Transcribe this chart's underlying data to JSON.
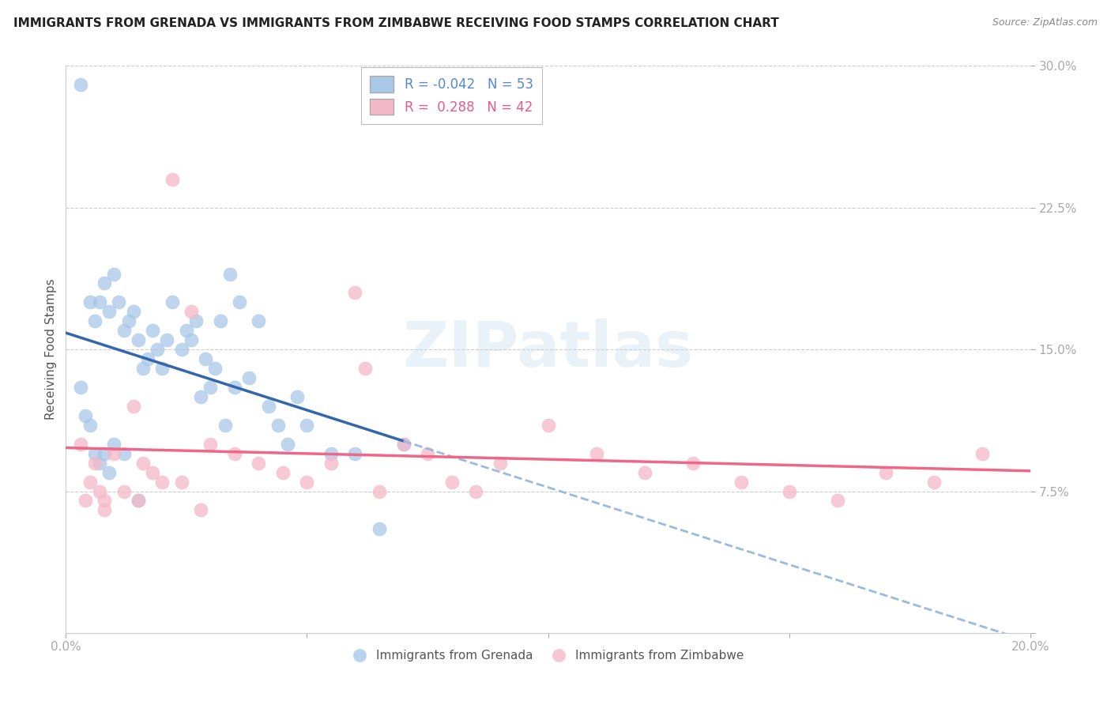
{
  "title": "IMMIGRANTS FROM GRENADA VS IMMIGRANTS FROM ZIMBABWE RECEIVING FOOD STAMPS CORRELATION CHART",
  "source": "Source: ZipAtlas.com",
  "ylabel": "Receiving Food Stamps",
  "xlim": [
    0.0,
    0.2
  ],
  "ylim": [
    0.0,
    0.3
  ],
  "legend_r_blue": "-0.042",
  "legend_n_blue": "53",
  "legend_r_pink": "0.288",
  "legend_n_pink": "42",
  "blue_color": "#a8c8e8",
  "pink_color": "#f4b8c8",
  "blue_line_color": "#3366aa",
  "pink_line_color": "#ee6688",
  "blue_dash_color": "#99bbdd",
  "watermark": "ZIPatlas",
  "background_color": "#ffffff",
  "grid_color": "#cccccc",
  "tick_color": "#5588cc",
  "title_fontsize": 11,
  "axis_label_fontsize": 11,
  "tick_fontsize": 11,
  "blue_scatter_x": [
    0.003,
    0.005,
    0.006,
    0.007,
    0.008,
    0.009,
    0.01,
    0.011,
    0.012,
    0.013,
    0.014,
    0.015,
    0.016,
    0.017,
    0.018,
    0.019,
    0.02,
    0.021,
    0.022,
    0.024,
    0.025,
    0.026,
    0.027,
    0.028,
    0.029,
    0.03,
    0.031,
    0.032,
    0.033,
    0.034,
    0.035,
    0.036,
    0.038,
    0.04,
    0.042,
    0.044,
    0.046,
    0.048,
    0.05,
    0.055,
    0.06,
    0.065,
    0.003,
    0.004,
    0.005,
    0.006,
    0.007,
    0.008,
    0.009,
    0.01,
    0.012,
    0.015,
    0.07
  ],
  "blue_scatter_y": [
    0.29,
    0.175,
    0.165,
    0.175,
    0.185,
    0.17,
    0.19,
    0.175,
    0.16,
    0.165,
    0.17,
    0.155,
    0.14,
    0.145,
    0.16,
    0.15,
    0.14,
    0.155,
    0.175,
    0.15,
    0.16,
    0.155,
    0.165,
    0.125,
    0.145,
    0.13,
    0.14,
    0.165,
    0.11,
    0.19,
    0.13,
    0.175,
    0.135,
    0.165,
    0.12,
    0.11,
    0.1,
    0.125,
    0.11,
    0.095,
    0.095,
    0.055,
    0.13,
    0.115,
    0.11,
    0.095,
    0.09,
    0.095,
    0.085,
    0.1,
    0.095,
    0.07,
    0.1
  ],
  "pink_scatter_x": [
    0.003,
    0.005,
    0.006,
    0.007,
    0.008,
    0.01,
    0.012,
    0.014,
    0.016,
    0.018,
    0.02,
    0.022,
    0.024,
    0.026,
    0.028,
    0.03,
    0.035,
    0.04,
    0.045,
    0.05,
    0.055,
    0.06,
    0.065,
    0.07,
    0.075,
    0.08,
    0.085,
    0.09,
    0.1,
    0.11,
    0.12,
    0.13,
    0.14,
    0.15,
    0.16,
    0.17,
    0.18,
    0.19,
    0.004,
    0.008,
    0.062,
    0.015
  ],
  "pink_scatter_y": [
    0.1,
    0.08,
    0.09,
    0.075,
    0.07,
    0.095,
    0.075,
    0.12,
    0.09,
    0.085,
    0.08,
    0.24,
    0.08,
    0.17,
    0.065,
    0.1,
    0.095,
    0.09,
    0.085,
    0.08,
    0.09,
    0.18,
    0.075,
    0.1,
    0.095,
    0.08,
    0.075,
    0.09,
    0.11,
    0.095,
    0.085,
    0.09,
    0.08,
    0.075,
    0.07,
    0.085,
    0.08,
    0.095,
    0.07,
    0.065,
    0.14,
    0.07
  ]
}
